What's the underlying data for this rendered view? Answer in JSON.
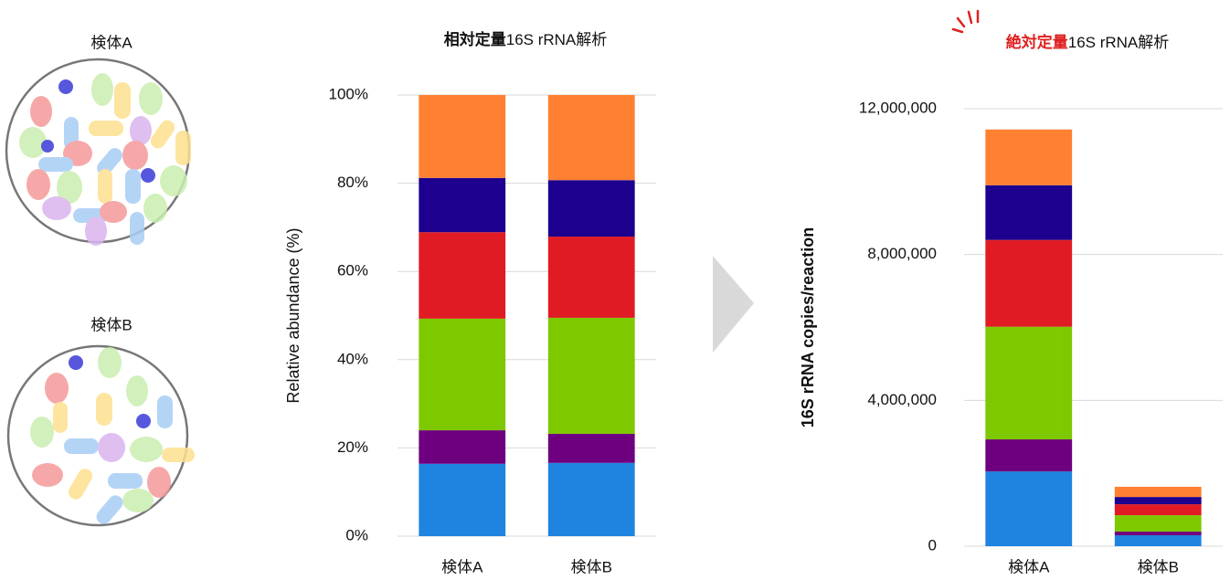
{
  "illustration": {
    "labels": [
      "検体A",
      "検体B"
    ]
  },
  "chart_data": [
    {
      "type": "bar",
      "stacked": true,
      "title": [
        "相対定量",
        "16S rRNA解析"
      ],
      "ylabel": "Relative abundance (%)",
      "categories": [
        "検体A",
        "検体B"
      ],
      "ylim": [
        0,
        100
      ],
      "yticks": [
        {
          "value": 0,
          "label": "0%"
        },
        {
          "value": 20,
          "label": "20%"
        },
        {
          "value": 40,
          "label": "40%"
        },
        {
          "value": 60,
          "label": "60%"
        },
        {
          "value": 80,
          "label": "80%"
        },
        {
          "value": 100,
          "label": "100%"
        }
      ],
      "grid": true,
      "series": [
        {
          "color": "#1f83e0",
          "values": [
            16.4,
            16.6
          ]
        },
        {
          "color": "#6e0080",
          "values": [
            7.6,
            6.6
          ]
        },
        {
          "color": "#7ec800",
          "values": [
            25.3,
            26.3
          ]
        },
        {
          "color": "#e01b24",
          "values": [
            19.6,
            18.4
          ]
        },
        {
          "color": "#1d008e",
          "values": [
            12.3,
            12.8
          ]
        },
        {
          "color": "#ff8030",
          "values": [
            18.8,
            19.3
          ]
        }
      ]
    },
    {
      "type": "bar",
      "stacked": true,
      "title": [
        "絶対定量",
        "16S rRNA解析"
      ],
      "ylabel": "16S rRNA copies/reaction",
      "categories": [
        "検体A",
        "検体B"
      ],
      "ylim": [
        0,
        12000000
      ],
      "yticks": [
        0,
        {
          "value": 4000000,
          "label": "4,000,000"
        },
        {
          "value": 8000000,
          "label": "8,000,000"
        },
        {
          "value": 12000000,
          "label": "12,000,000"
        }
      ],
      "grid": true,
      "series": [
        {
          "color": "#1f83e0",
          "values": [
            2050000,
            300000
          ]
        },
        {
          "color": "#6e0080",
          "values": [
            880000,
            100000
          ]
        },
        {
          "color": "#7ec800",
          "values": [
            3090000,
            450000
          ]
        },
        {
          "color": "#e01b24",
          "values": [
            2380000,
            300000
          ]
        },
        {
          "color": "#1d008e",
          "values": [
            1500000,
            200000
          ]
        },
        {
          "color": "#ff8030",
          "values": [
            1530000,
            280000
          ]
        }
      ]
    }
  ]
}
